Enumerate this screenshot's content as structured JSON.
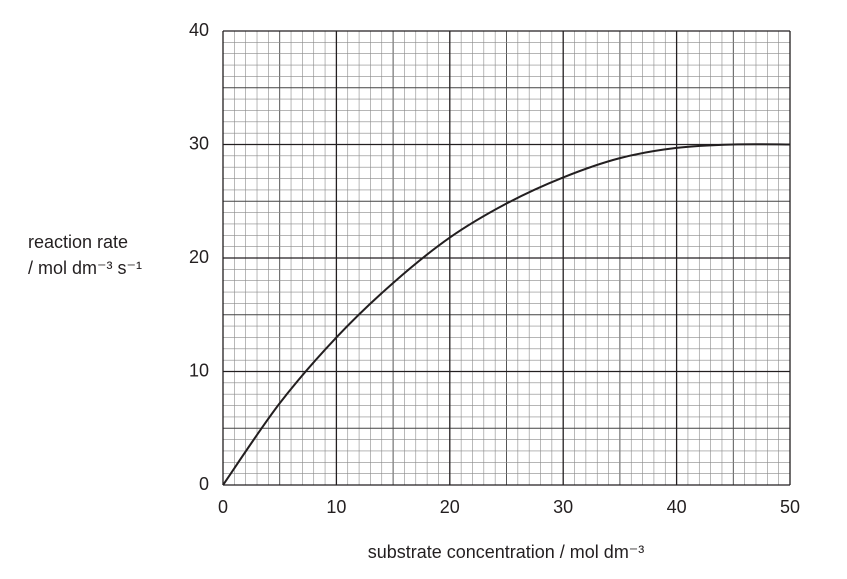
{
  "chart_data": {
    "type": "line",
    "y_label": [
      "reaction rate",
      "/ mol dm⁻³ s⁻¹"
    ],
    "x_label": "substrate concentration / mol dm⁻³",
    "x": [
      0,
      5,
      10,
      15,
      20,
      25,
      30,
      35,
      40,
      45,
      50
    ],
    "values": [
      0,
      7.2,
      13,
      17.8,
      21.8,
      24.8,
      27.1,
      28.8,
      29.7,
      30,
      30
    ],
    "color": "#231f20",
    "xlim": [
      0,
      50
    ],
    "xticks": [
      0,
      10,
      20,
      30,
      40,
      50
    ],
    "ylim": [
      0,
      40
    ],
    "yticks": [
      0,
      10,
      20,
      30,
      40
    ],
    "grid": true
  }
}
